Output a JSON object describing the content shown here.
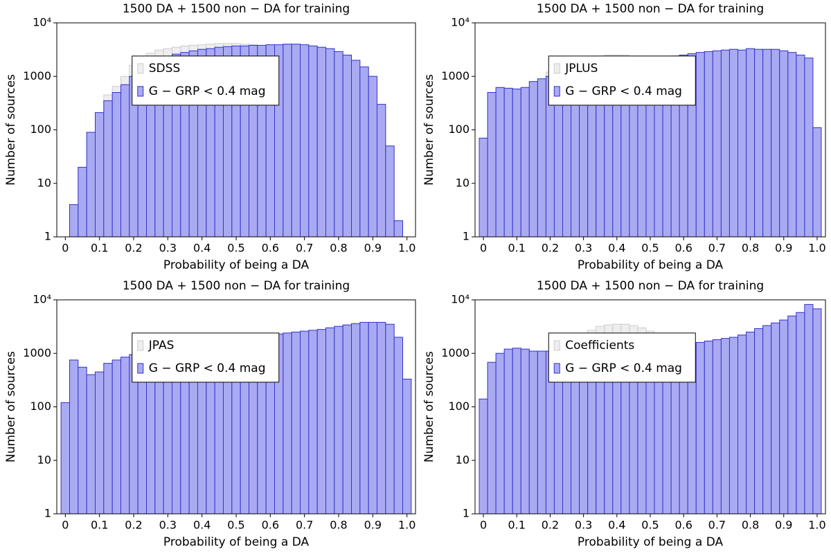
{
  "chart_data": [
    {
      "type": "histogram",
      "title": "1500 DA  +  1500 non − DA for training",
      "x_label": "Probability of being a DA",
      "y_label": "Number of sources",
      "log_y": true,
      "legend": "center left",
      "bins": [
        -0.0125,
        0.0125,
        0.0375,
        0.0625,
        0.0875,
        0.1125,
        0.1375,
        0.1625,
        0.1875,
        0.2125,
        0.2375,
        0.2625,
        0.2875,
        0.3125,
        0.3375,
        0.3625,
        0.3875,
        0.4125,
        0.4375,
        0.4625,
        0.4875,
        0.5125,
        0.5375,
        0.5625,
        0.5875,
        0.6125,
        0.6375,
        0.6625,
        0.6875,
        0.7125,
        0.7375,
        0.7625,
        0.7875,
        0.8125,
        0.8375,
        0.8625,
        0.8875,
        0.9125,
        0.9375,
        0.9625,
        0.9875,
        1.0125
      ],
      "series": [
        {
          "name": "SDSS",
          "color": "#eeeeee",
          "values": [
            0,
            4,
            20,
            90,
            210,
            450,
            650,
            1000,
            1600,
            2200,
            2700,
            3100,
            3300,
            3500,
            3700,
            3800,
            3900,
            4000,
            4100,
            4100,
            4100,
            4000,
            3900,
            3800,
            3900,
            3900,
            4000,
            4000,
            3900,
            3700,
            3500,
            3300,
            2900,
            2500,
            2000,
            1500,
            1000,
            300,
            50,
            2,
            0
          ]
        },
        {
          "name": "G − GRP < 0.4 mag",
          "color": "#aaaaf2",
          "values": [
            0,
            4,
            20,
            90,
            210,
            350,
            500,
            700,
            1000,
            1300,
            1600,
            1900,
            2300,
            2600,
            2800,
            3000,
            3200,
            3300,
            3500,
            3600,
            3700,
            3700,
            3800,
            3800,
            3900,
            3900,
            4000,
            4000,
            3900,
            3700,
            3500,
            3300,
            2900,
            2500,
            2000,
            1500,
            1000,
            300,
            50,
            2,
            0
          ]
        }
      ],
      "xlim": [
        -0.025,
        1.025
      ],
      "xticks": [
        0,
        0.1,
        0.2,
        0.3,
        0.4,
        0.5,
        0.6,
        0.7,
        0.8,
        0.9,
        {
          "value": 1,
          "label": "1.0"
        }
      ],
      "ylim": [
        1,
        10000
      ],
      "yticks": [
        1,
        10,
        100,
        1000,
        {
          "value": 10000,
          "label": "10⁴"
        }
      ]
    },
    {
      "type": "histogram",
      "title": "1500 DA  +  1500 non − DA for training",
      "x_label": "Probability of being a DA",
      "y_label": "Number of sources",
      "log_y": true,
      "legend": "center left",
      "bins": [
        -0.0125,
        0.0125,
        0.0375,
        0.0625,
        0.0875,
        0.1125,
        0.1375,
        0.1625,
        0.1875,
        0.2125,
        0.2375,
        0.2625,
        0.2875,
        0.3125,
        0.3375,
        0.3625,
        0.3875,
        0.4125,
        0.4375,
        0.4625,
        0.4875,
        0.5125,
        0.5375,
        0.5625,
        0.5875,
        0.6125,
        0.6375,
        0.6625,
        0.6875,
        0.7125,
        0.7375,
        0.7625,
        0.7875,
        0.8125,
        0.8375,
        0.8625,
        0.8875,
        0.9125,
        0.9375,
        0.9625,
        0.9875,
        1.0125
      ],
      "series": [
        {
          "name": "JPLUS",
          "color": "#eeeeee",
          "values": [
            70,
            500,
            620,
            600,
            580,
            620,
            800,
            900,
            1200,
            1500,
            1800,
            2000,
            2200,
            2300,
            2400,
            2500,
            2500,
            2500,
            2400,
            2400,
            2400,
            2400,
            2400,
            2400,
            2500,
            2650,
            2800,
            2900,
            3000,
            3100,
            3200,
            3100,
            3300,
            3200,
            3200,
            3200,
            3000,
            2800,
            2500,
            2200,
            110
          ]
        },
        {
          "name": "G − GRP < 0.4 mag",
          "color": "#aaaaf2",
          "values": [
            70,
            500,
            620,
            600,
            580,
            620,
            800,
            900,
            1000,
            1100,
            1200,
            1350,
            1500,
            1650,
            1750,
            1850,
            1900,
            1950,
            2000,
            2050,
            2100,
            2200,
            2300,
            2400,
            2500,
            2650,
            2800,
            2900,
            3000,
            3100,
            3200,
            3100,
            3300,
            3200,
            3200,
            3200,
            3000,
            2800,
            2500,
            2200,
            110
          ]
        }
      ],
      "xlim": [
        -0.025,
        1.025
      ],
      "xticks": [
        0,
        0.1,
        0.2,
        0.3,
        0.4,
        0.5,
        0.6,
        0.7,
        0.8,
        0.9,
        {
          "value": 1,
          "label": "1.0"
        }
      ],
      "ylim": [
        1,
        10000
      ],
      "yticks": [
        1,
        10,
        100,
        1000,
        {
          "value": 10000,
          "label": "10⁴"
        }
      ]
    },
    {
      "type": "histogram",
      "title": "1500 DA  +  1500 non − DA for training",
      "x_label": "Probability of being a DA",
      "y_label": "Number of sources",
      "log_y": true,
      "legend": "center left",
      "bins": [
        -0.0125,
        0.0125,
        0.0375,
        0.0625,
        0.0875,
        0.1125,
        0.1375,
        0.1625,
        0.1875,
        0.2125,
        0.2375,
        0.2625,
        0.2875,
        0.3125,
        0.3375,
        0.3625,
        0.3875,
        0.4125,
        0.4375,
        0.4625,
        0.4875,
        0.5125,
        0.5375,
        0.5625,
        0.5875,
        0.6125,
        0.6375,
        0.6625,
        0.6875,
        0.7125,
        0.7375,
        0.7625,
        0.7875,
        0.8125,
        0.8375,
        0.8625,
        0.8875,
        0.9125,
        0.9375,
        0.9625,
        0.9875,
        1.0125
      ],
      "series": [
        {
          "name": "JPAS",
          "color": "#eeeeee",
          "values": [
            120,
            750,
            550,
            400,
            450,
            650,
            750,
            850,
            950,
            1200,
            1500,
            1700,
            1900,
            2000,
            2100,
            2200,
            2300,
            2300,
            2300,
            2300,
            2300,
            2300,
            2100,
            2100,
            2200,
            2300,
            2400,
            2500,
            2600,
            2700,
            2800,
            3000,
            3200,
            3400,
            3600,
            3800,
            3800,
            3800,
            3500,
            2000,
            330
          ]
        },
        {
          "name": "G − GRP < 0.4 mag",
          "color": "#aaaaf2",
          "values": [
            120,
            750,
            550,
            400,
            450,
            650,
            750,
            850,
            950,
            1050,
            1200,
            1300,
            1400,
            1500,
            1600,
            1700,
            1800,
            1900,
            2000,
            2050,
            2100,
            2100,
            2100,
            2100,
            2200,
            2300,
            2400,
            2500,
            2600,
            2700,
            2800,
            3000,
            3200,
            3400,
            3600,
            3800,
            3800,
            3800,
            3500,
            2000,
            330
          ]
        }
      ],
      "xlim": [
        -0.025,
        1.025
      ],
      "xticks": [
        0,
        0.1,
        0.2,
        0.3,
        0.4,
        0.5,
        0.6,
        0.7,
        0.8,
        0.9,
        {
          "value": 1,
          "label": "1.0"
        }
      ],
      "ylim": [
        1,
        10000
      ],
      "yticks": [
        1,
        10,
        100,
        1000,
        {
          "value": 10000,
          "label": "10⁴"
        }
      ]
    },
    {
      "type": "histogram",
      "title": "1500 DA  +  1500 non − DA for training",
      "x_label": "Probability of being a DA",
      "y_label": "Number of sources",
      "log_y": true,
      "legend": "center left",
      "bins": [
        -0.0125,
        0.0125,
        0.0375,
        0.0625,
        0.0875,
        0.1125,
        0.1375,
        0.1625,
        0.1875,
        0.2125,
        0.2375,
        0.2625,
        0.2875,
        0.3125,
        0.3375,
        0.3625,
        0.3875,
        0.4125,
        0.4375,
        0.4625,
        0.4875,
        0.5125,
        0.5375,
        0.5625,
        0.5875,
        0.6125,
        0.6375,
        0.6625,
        0.6875,
        0.7125,
        0.7375,
        0.7625,
        0.7875,
        0.8125,
        0.8375,
        0.8625,
        0.8875,
        0.9125,
        0.9375,
        0.9625,
        0.9875,
        1.0125
      ],
      "series": [
        {
          "name": "Coefficients",
          "color": "#eeeeee",
          "values": [
            140,
            680,
            1000,
            1200,
            1250,
            1200,
            1100,
            1100,
            1100,
            1200,
            1300,
            1700,
            2200,
            2700,
            3200,
            3400,
            3500,
            3500,
            3300,
            3000,
            2600,
            2200,
            1900,
            1700,
            1600,
            1500,
            1600,
            1700,
            1800,
            1900,
            2000,
            2200,
            2500,
            2900,
            3300,
            3700,
            4200,
            5000,
            5800,
            8200,
            6800
          ]
        },
        {
          "name": "G − GRP < 0.4 mag",
          "color": "#aaaaf2",
          "values": [
            140,
            680,
            1000,
            1200,
            1250,
            1200,
            1100,
            1100,
            1100,
            1200,
            1300,
            1500,
            1700,
            1800,
            1900,
            1950,
            2000,
            1950,
            1900,
            1900,
            1800,
            1700,
            1600,
            1550,
            1500,
            1500,
            1600,
            1700,
            1800,
            1900,
            2000,
            2200,
            2500,
            2900,
            3300,
            3700,
            4200,
            5000,
            5800,
            8200,
            6800
          ]
        }
      ],
      "xlim": [
        -0.025,
        1.025
      ],
      "xticks": [
        0,
        0.1,
        0.2,
        0.3,
        0.4,
        0.5,
        0.6,
        0.7,
        0.8,
        0.9,
        {
          "value": 1,
          "label": "1.0"
        }
      ],
      "ylim": [
        1,
        10000
      ],
      "yticks": [
        1,
        10,
        100,
        1000,
        {
          "value": 10000,
          "label": "10⁴"
        }
      ]
    }
  ]
}
